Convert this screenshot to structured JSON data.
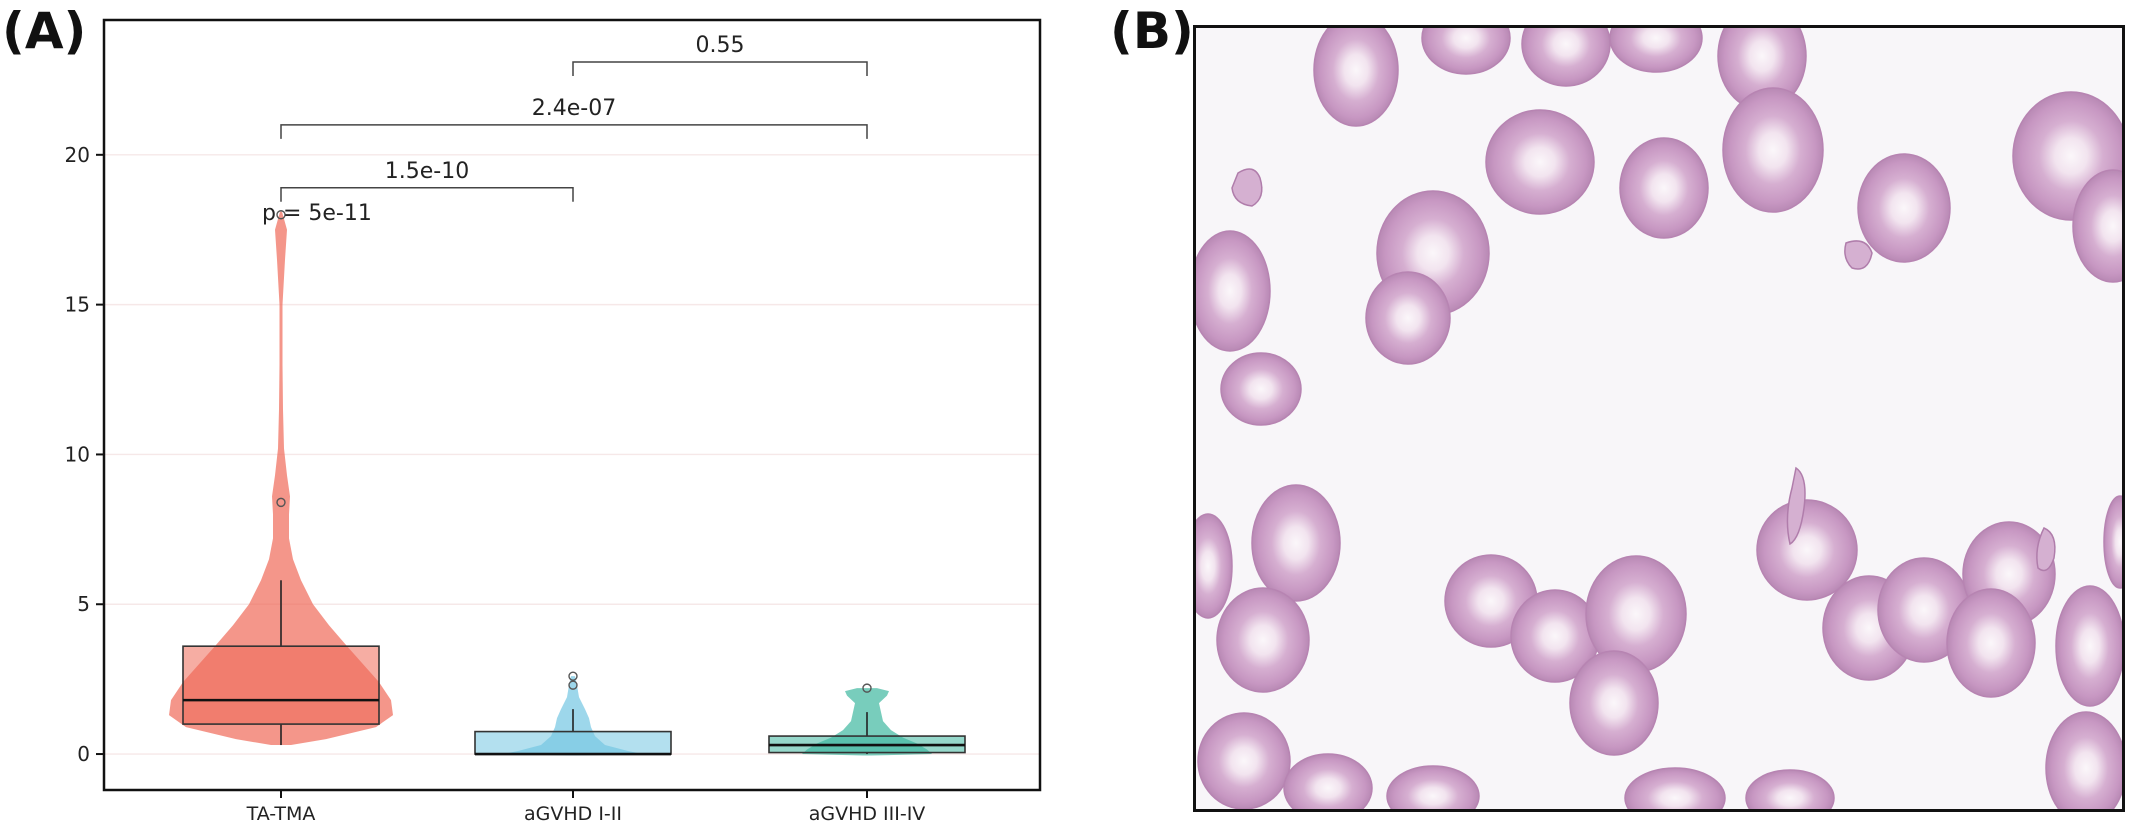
{
  "panels": {
    "a_label": "(A)",
    "b_label": "(B)"
  },
  "chart_data": {
    "type": "violin",
    "categories": [
      "TA-TMA",
      "aGVHD I-II",
      "aGVHD III-IV"
    ],
    "colors": [
      "#ef6a58",
      "#74c6e2",
      "#3fb8a0"
    ],
    "ylim": [
      -1.2,
      24.5
    ],
    "yticks": [
      0,
      5,
      10,
      15,
      20
    ],
    "xlabel": "",
    "ylabel": "",
    "grid": true,
    "legend": "none",
    "boxes": [
      {
        "min": 0.3,
        "q1": 1.0,
        "median": 1.8,
        "q3": 3.6,
        "max": 5.8,
        "outliers": [
          8.4,
          18.0
        ]
      },
      {
        "min": 0.0,
        "q1": 0.0,
        "median": 0.0,
        "q3": 0.75,
        "max": 1.5,
        "outliers": [
          2.3,
          2.6
        ]
      },
      {
        "min": 0.0,
        "q1": 0.05,
        "median": 0.3,
        "q3": 0.6,
        "max": 1.4,
        "outliers": [
          2.2
        ]
      }
    ],
    "comparisons": [
      {
        "from": 0,
        "to": 1,
        "label": "1.5e-10",
        "y": 18.9
      },
      {
        "from": 0,
        "to": 2,
        "label": "2.4e-07",
        "y": 21.0
      },
      {
        "from": 1,
        "to": 2,
        "label": "0.55",
        "y": 23.1
      }
    ],
    "global_test": {
      "label": "p = 5e-11",
      "y": 18.1
    }
  },
  "micrograph": {
    "description_icon": "blood-smear-image"
  }
}
